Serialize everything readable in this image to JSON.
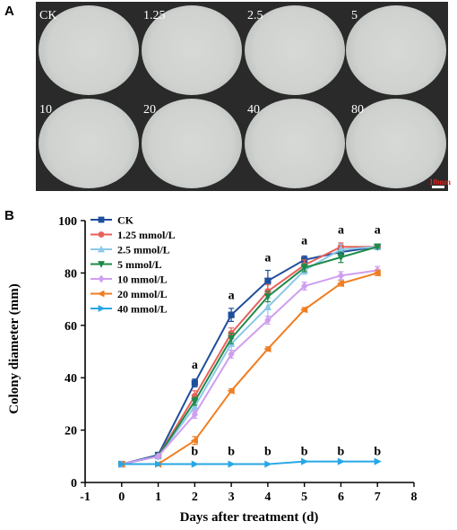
{
  "panels": {
    "a_label": "A",
    "b_label": "B"
  },
  "photo_panel": {
    "dish_labels": [
      "CK",
      "1.25",
      "2.5",
      "5",
      "10",
      "20",
      "40",
      "80"
    ],
    "scale_bar_label": "10mm"
  },
  "chart_data": {
    "type": "line",
    "title": "",
    "xlabel": "Days after treatment (d)",
    "ylabel": "Colony diameter (mm)",
    "xlim": [
      -1,
      8
    ],
    "ylim": [
      0,
      100
    ],
    "xticks": [
      -1,
      0,
      1,
      2,
      3,
      4,
      5,
      6,
      7,
      8
    ],
    "yticks": [
      0,
      20,
      40,
      60,
      80,
      100
    ],
    "legend_position": "top-left",
    "x": [
      0,
      1,
      2,
      3,
      4,
      5,
      6,
      7
    ],
    "series": [
      {
        "name": "CK",
        "color": "#1f4e9c",
        "marker": "square",
        "values": [
          7,
          10.5,
          38,
          64,
          77,
          85,
          88,
          90
        ],
        "errors": [
          0.5,
          0.8,
          1.5,
          2.5,
          4,
          1.5,
          2,
          0.5
        ]
      },
      {
        "name": "1.25 mmol/L",
        "color": "#e8615a",
        "marker": "circle",
        "values": [
          7,
          10,
          33,
          57,
          73,
          83,
          90,
          90
        ],
        "errors": [
          0.5,
          0.6,
          2,
          2,
          2.5,
          2,
          1.5,
          0.5
        ]
      },
      {
        "name": "2.5 mmol/L",
        "color": "#8cc8e8",
        "marker": "triangle-up",
        "values": [
          7,
          10,
          29,
          53,
          67,
          81,
          89,
          90
        ],
        "errors": [
          0.5,
          0.6,
          2,
          2.5,
          3.5,
          1.5,
          2,
          0.5
        ]
      },
      {
        "name": "5 mmol/L",
        "color": "#1e8a4a",
        "marker": "triangle-down",
        "values": [
          7,
          10,
          31,
          55,
          71,
          82,
          86,
          90
        ],
        "errors": [
          0.5,
          0.6,
          1.5,
          2,
          2,
          1.5,
          2,
          0.5
        ]
      },
      {
        "name": "10 mmol/L",
        "color": "#d09ef0",
        "marker": "diamond",
        "values": [
          7,
          10,
          26,
          49,
          62,
          75,
          79,
          81
        ],
        "errors": [
          0.5,
          0.5,
          1.5,
          1.5,
          1.5,
          1.5,
          1.5,
          1.5
        ]
      },
      {
        "name": "20 mmol/L",
        "color": "#f07e22",
        "marker": "triangle-left",
        "values": [
          7,
          7,
          16,
          35,
          51,
          66,
          76,
          80
        ],
        "errors": [
          0.3,
          0.3,
          1.5,
          0.8,
          0.8,
          0.8,
          1,
          1
        ]
      },
      {
        "name": "40 mmol/L",
        "color": "#27a7e6",
        "marker": "triangle-right",
        "values": [
          7,
          7,
          7,
          7,
          7,
          8,
          8,
          8
        ],
        "errors": [
          0.2,
          0.2,
          0.2,
          0.2,
          0.2,
          0.2,
          0.2,
          0.2
        ]
      }
    ],
    "annotations": [
      {
        "text": "a",
        "x": 2,
        "y": 43.5
      },
      {
        "text": "a",
        "x": 3,
        "y": 70
      },
      {
        "text": "a",
        "x": 4,
        "y": 84.5
      },
      {
        "text": "a",
        "x": 5,
        "y": 91
      },
      {
        "text": "a",
        "x": 6,
        "y": 95
      },
      {
        "text": "a",
        "x": 7,
        "y": 95
      },
      {
        "text": "b",
        "x": 2,
        "y": 10.5
      },
      {
        "text": "b",
        "x": 3,
        "y": 10.5
      },
      {
        "text": "b",
        "x": 4,
        "y": 10.5
      },
      {
        "text": "b",
        "x": 5,
        "y": 10.5
      },
      {
        "text": "b",
        "x": 6,
        "y": 10.5
      },
      {
        "text": "b",
        "x": 7,
        "y": 10.5
      }
    ]
  }
}
